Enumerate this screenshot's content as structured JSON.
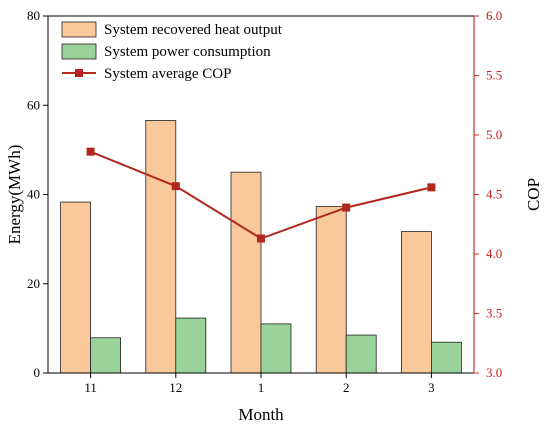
{
  "chart_data": {
    "type": "bar",
    "categories": [
      "11",
      "12",
      "1",
      "2",
      "3"
    ],
    "series": [
      {
        "name": "System recovered heat output",
        "axis": "left",
        "type": "bar",
        "color": "#f9c99b",
        "values": [
          38.3,
          56.6,
          45.0,
          37.3,
          31.7
        ]
      },
      {
        "name": "System power consumption",
        "axis": "left",
        "type": "bar",
        "color": "#9ad39a",
        "values": [
          7.9,
          12.3,
          11.0,
          8.5,
          6.9
        ]
      },
      {
        "name": "System average COP",
        "axis": "right",
        "type": "line",
        "color": "#b0281e",
        "marker": "square",
        "values": [
          4.86,
          4.57,
          4.13,
          4.39,
          4.56
        ]
      }
    ],
    "xlabel": "Month",
    "ylabel": "Energy(MWh)",
    "y2label": "COP",
    "ylim": [
      0,
      80
    ],
    "y2lim": [
      3.0,
      6.0
    ],
    "yticks": [
      "0",
      "20",
      "40",
      "60",
      "80"
    ],
    "y2ticks": [
      "3.0",
      "3.5",
      "4.0",
      "4.5",
      "5.0",
      "5.5",
      "6.0"
    ],
    "legend_position": "top-left",
    "grid": false,
    "right_axis_color": "#d6322a"
  }
}
